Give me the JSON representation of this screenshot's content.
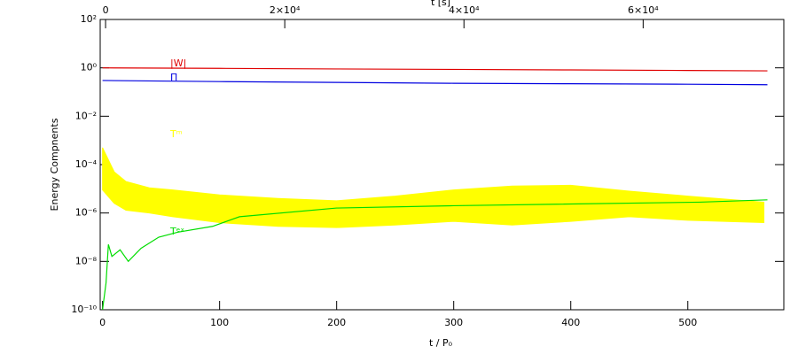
{
  "chart_data": {
    "type": "line",
    "xlabel": "t / P₀",
    "ylabel": "Energy Compnents",
    "x2label": "t [s]",
    "xlim": [
      -2,
      582
    ],
    "xticks": [
      0,
      100,
      200,
      300,
      400,
      500
    ],
    "x2lim": [
      -600,
      75700
    ],
    "x2ticks": [
      {
        "value": 0,
        "label": "0"
      },
      {
        "value": 20000,
        "label": "2×10⁴"
      },
      {
        "value": 40000,
        "label": "4×10⁴"
      },
      {
        "value": 60000,
        "label": "6×10⁴"
      }
    ],
    "ylim": [
      1e-10,
      100
    ],
    "ylog": true,
    "yticks": [
      {
        "value": 1e-10,
        "label": "10⁻¹⁰"
      },
      {
        "value": 1e-08,
        "label": "10⁻⁸"
      },
      {
        "value": 1e-06,
        "label": "10⁻⁶"
      },
      {
        "value": 0.0001,
        "label": "10⁻⁴"
      },
      {
        "value": 0.01,
        "label": "10⁻²"
      },
      {
        "value": 1,
        "label": "10⁰"
      },
      {
        "value": 100,
        "label": "10²"
      }
    ],
    "series": [
      {
        "name": "|W|",
        "color": "#e00000",
        "x": [
          0,
          100,
          200,
          300,
          400,
          500,
          568
        ],
        "values": [
          1.0,
          0.95,
          0.9,
          0.86,
          0.82,
          0.78,
          0.75
        ]
      },
      {
        "name": "Π",
        "color": "#0000e0",
        "x": [
          0,
          100,
          200,
          300,
          400,
          500,
          568
        ],
        "values": [
          0.3,
          0.27,
          0.25,
          0.23,
          0.22,
          0.21,
          0.2
        ]
      },
      {
        "name": "Tᵉˣ",
        "color": "#00dd00",
        "x": [
          0,
          3,
          5,
          8,
          15,
          22,
          33,
          48,
          64,
          94,
          117,
          200,
          300,
          510,
          568
        ],
        "values": [
          1e-10,
          1.3e-09,
          5e-08,
          1.6e-08,
          3e-08,
          1e-08,
          3.5e-08,
          1e-07,
          1.6e-07,
          2.8e-07,
          7e-07,
          1.6e-06,
          2e-06,
          2.8e-06,
          3.5e-06
        ]
      }
    ],
    "band": {
      "name": "Tᵐ",
      "color": "#ffff00",
      "x": [
        0,
        10,
        20,
        40,
        60,
        100,
        150,
        200,
        250,
        300,
        350,
        400,
        450,
        500,
        565
      ],
      "upper": [
        0.0005,
        5e-05,
        2e-05,
        1.1e-05,
        9e-06,
        5.6e-06,
        4e-06,
        3.2e-06,
        5e-06,
        9e-06,
        1.3e-05,
        1.4e-05,
        8e-06,
        5e-06,
        2.8e-06
      ],
      "lower": [
        9e-06,
        2.5e-06,
        1.3e-06,
        1e-06,
        7e-07,
        4e-07,
        2.8e-07,
        2.5e-07,
        3.2e-07,
        4.5e-07,
        3.2e-07,
        4.5e-07,
        7e-07,
        5e-07,
        4e-07
      ]
    }
  }
}
